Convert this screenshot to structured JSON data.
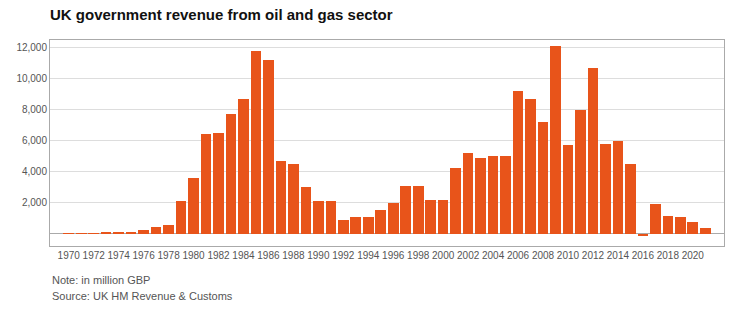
{
  "chart_data": {
    "type": "bar",
    "title": "UK government revenue from oil and gas sector",
    "annotations": [
      "Note: in million GBP",
      "Source: UK HM Revenue & Customs"
    ],
    "x": [
      1970,
      1971,
      1972,
      1973,
      1974,
      1975,
      1976,
      1977,
      1978,
      1979,
      1980,
      1981,
      1982,
      1983,
      1984,
      1985,
      1986,
      1987,
      1988,
      1989,
      1990,
      1991,
      1992,
      1993,
      1994,
      1995,
      1996,
      1997,
      1998,
      1999,
      2000,
      2001,
      2002,
      2003,
      2004,
      2005,
      2006,
      2007,
      2008,
      2009,
      2010,
      2011,
      2012,
      2013,
      2014,
      2015,
      2016,
      2017,
      2018,
      2019,
      2020,
      2021
    ],
    "values": [
      30,
      30,
      30,
      40,
      60,
      100,
      250,
      420,
      560,
      2100,
      3600,
      6400,
      6500,
      7700,
      8700,
      11800,
      11200,
      4700,
      4500,
      3000,
      2100,
      2100,
      900,
      1050,
      1050,
      1500,
      2000,
      3100,
      3100,
      2200,
      2200,
      4250,
      5200,
      4900,
      5000,
      5000,
      9200,
      8700,
      7200,
      12100,
      5700,
      8000,
      10700,
      5800,
      6000,
      4500,
      -130,
      1900,
      1150,
      1100,
      760,
      350
    ],
    "color": "#E8541A",
    "xlim": [
      1968.5,
      2022.5
    ],
    "xticks": [
      1970,
      1972,
      1974,
      1976,
      1978,
      1980,
      1982,
      1984,
      1986,
      1988,
      1990,
      1992,
      1994,
      1996,
      1998,
      2000,
      2002,
      2004,
      2006,
      2008,
      2010,
      2012,
      2014,
      2016,
      2018,
      2020
    ],
    "ylim": [
      -800,
      12500
    ],
    "yticks": [
      {
        "value": 2000,
        "label": "2,000"
      },
      {
        "value": 4000,
        "label": "4,000"
      },
      {
        "value": 6000,
        "label": "6,000"
      },
      {
        "value": 8000,
        "label": "8,000"
      },
      {
        "value": 10000,
        "label": "10,000"
      },
      {
        "value": 12000,
        "label": "12,000"
      }
    ],
    "grid": true
  }
}
